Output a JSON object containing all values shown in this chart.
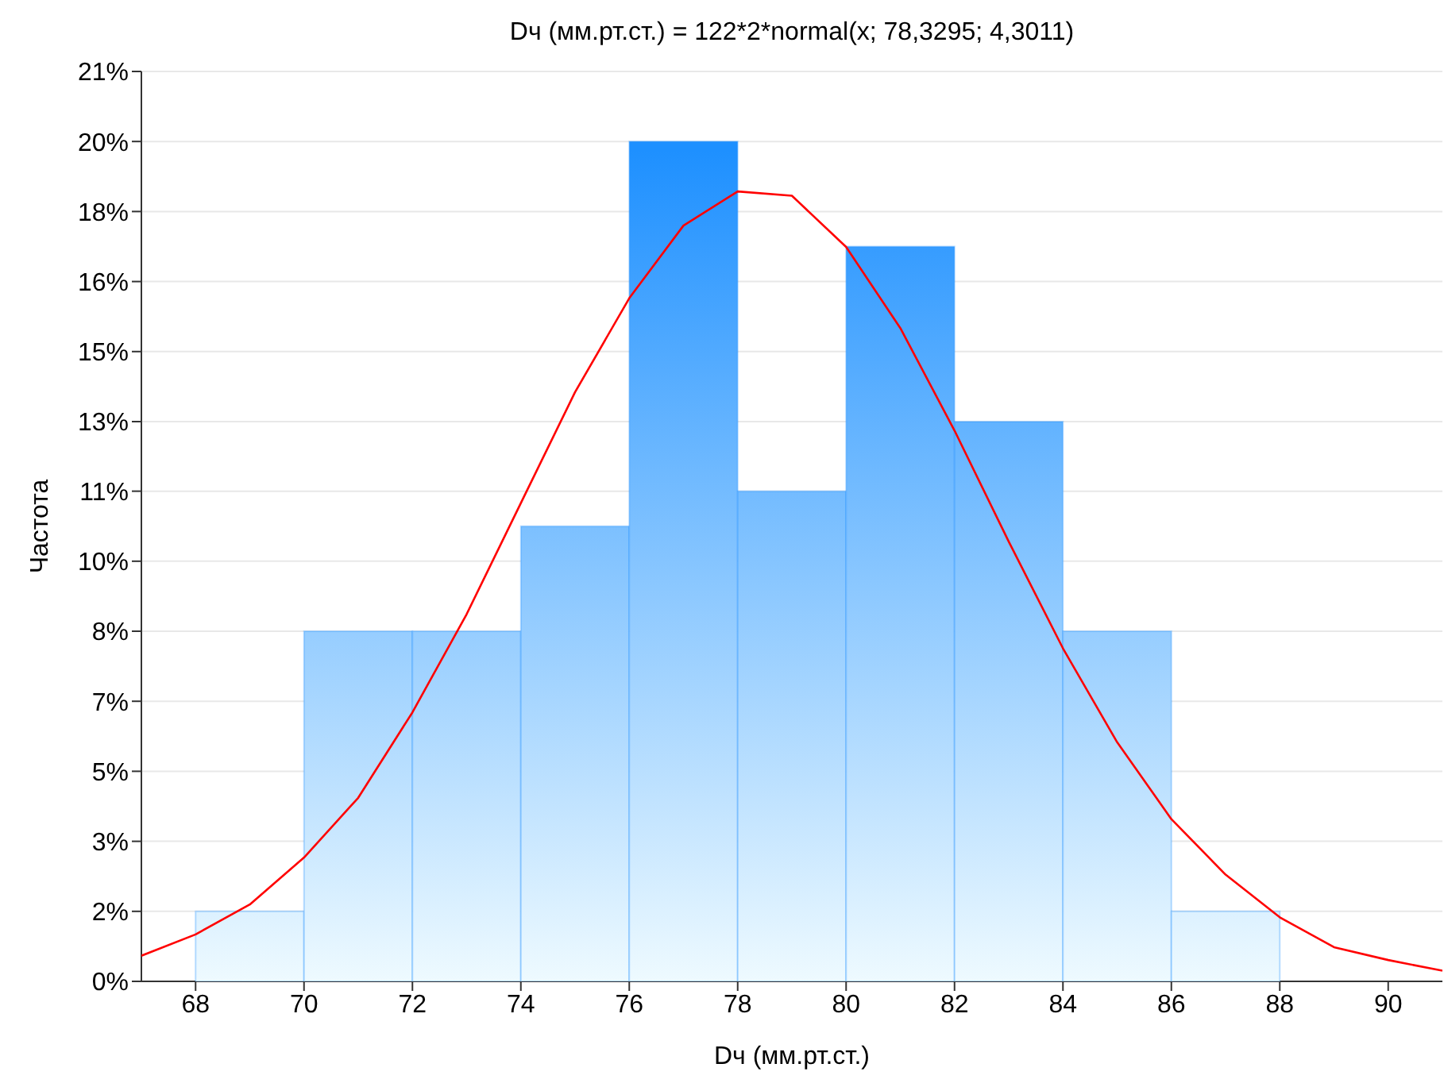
{
  "chart_data": {
    "type": "histogram",
    "title": "Dч (мм.рт.ст.) = 122*2*normal(x; 78,3295; 4,3011)",
    "xlabel": "Dч (мм.рт.ст.)",
    "ylabel": "Частота",
    "xlim": [
      67,
      91
    ],
    "xticks": [
      68,
      70,
      72,
      74,
      76,
      78,
      80,
      82,
      84,
      86,
      88,
      90
    ],
    "ylim": [
      0,
      21.31
    ],
    "yticks": [
      {
        "value": 0,
        "label": "0%"
      },
      {
        "value": 1.64,
        "label": "2%"
      },
      {
        "value": 3.28,
        "label": "3%"
      },
      {
        "value": 4.92,
        "label": "5%"
      },
      {
        "value": 6.56,
        "label": "7%"
      },
      {
        "value": 8.2,
        "label": "8%"
      },
      {
        "value": 9.84,
        "label": "10%"
      },
      {
        "value": 11.48,
        "label": "11%"
      },
      {
        "value": 13.11,
        "label": "13%"
      },
      {
        "value": 14.75,
        "label": "15%"
      },
      {
        "value": 16.39,
        "label": "16%"
      },
      {
        "value": 18.03,
        "label": "18%"
      },
      {
        "value": 19.67,
        "label": "20%"
      },
      {
        "value": 21.31,
        "label": "21%"
      }
    ],
    "grid": "y",
    "legend": false,
    "series": [
      {
        "color": "#1e90ff",
        "bins": [
          68,
          70,
          72,
          74,
          76,
          78,
          80,
          82,
          84,
          86,
          88
        ],
        "values": [
          1.64,
          8.2,
          8.2,
          10.66,
          19.67,
          11.48,
          17.21,
          13.11,
          8.2,
          1.64
        ]
      },
      {
        "type": "line",
        "color": "#ff0000",
        "x": [
          67,
          68,
          69,
          70,
          71,
          72,
          73,
          74,
          75,
          76,
          77,
          78,
          79,
          80,
          81,
          82,
          83,
          84,
          85,
          86,
          87,
          88,
          89,
          90,
          91
        ],
        "values": [
          0.6,
          1.1,
          1.8,
          2.9,
          4.3,
          6.3,
          8.6,
          11.2,
          13.8,
          16.0,
          17.7,
          18.5,
          18.4,
          17.2,
          15.3,
          12.9,
          10.3,
          7.8,
          5.6,
          3.8,
          2.5,
          1.5,
          0.8,
          0.5,
          0.25
        ]
      }
    ]
  }
}
